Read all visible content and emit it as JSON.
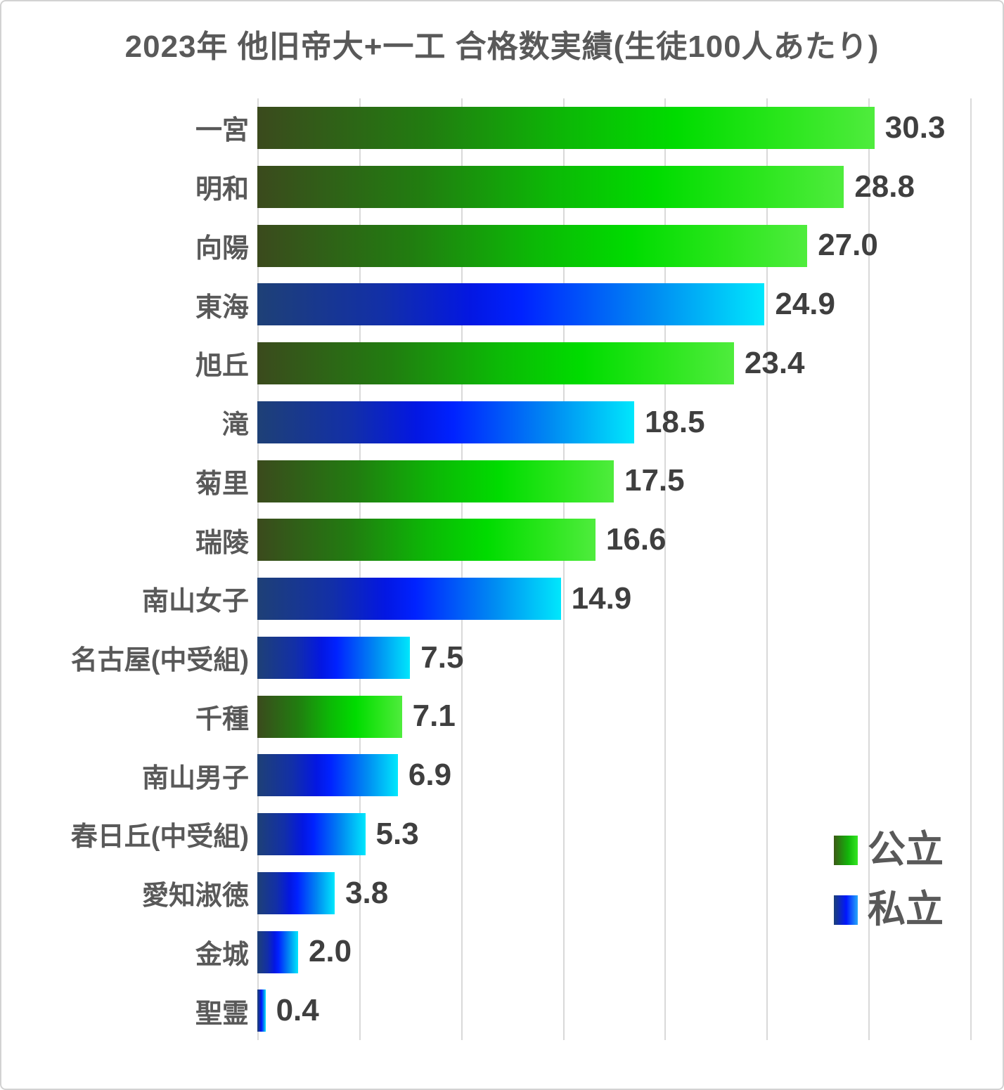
{
  "title": "2023年 他旧帝大+一工 合格数実績(生徒100人あたり)",
  "legend": {
    "items": [
      {
        "label": "公立",
        "series": "public"
      },
      {
        "label": "私立",
        "series": "private"
      }
    ]
  },
  "colors": {
    "title_text": "#595959",
    "category_text": "#595959",
    "value_text": "#3f3f3f",
    "gridline": "#d9d9d9",
    "chart_border": "#d2d2d2",
    "background": "#ffffff",
    "public_accent": "#00dc00",
    "private_accent": "#0016ff",
    "public_gradient_stops": [
      "#3b4a1d 0%",
      "#217d10 28%",
      "#0cb806 50%",
      "#00dc00 68%",
      "#2ae61c 85%",
      "#4fec3d 100%"
    ],
    "private_gradient_stops": [
      "#1e4076 0%",
      "#122fa8 25%",
      "#0317e2 42%",
      "#0022ff 52%",
      "#008bf2 78%",
      "#00e7fc 100%"
    ]
  },
  "chart_data": {
    "type": "bar",
    "orientation": "horizontal",
    "title": "2023年 他旧帝大+一工 合格数実績(生徒100人あたり)",
    "categories": [
      "一宮",
      "明和",
      "向陽",
      "東海",
      "旭丘",
      "滝",
      "菊里",
      "瑞陵",
      "南山女子",
      "名古屋(中受組)",
      "千種",
      "南山男子",
      "春日丘(中受組)",
      "愛知淑徳",
      "金城",
      "聖霊"
    ],
    "values": [
      30.3,
      28.8,
      27.0,
      24.9,
      23.4,
      18.5,
      17.5,
      16.6,
      14.9,
      7.5,
      7.1,
      6.9,
      5.3,
      3.8,
      2.0,
      0.4
    ],
    "series": [
      "public",
      "public",
      "public",
      "private",
      "public",
      "private",
      "public",
      "public",
      "private",
      "private",
      "public",
      "private",
      "private",
      "private",
      "private",
      "private"
    ],
    "legend_entries": [
      "公立",
      "私立"
    ],
    "xlim": [
      0,
      35
    ],
    "grid_interval": 5,
    "grid": true,
    "value_label_style": "outside end, one decimal",
    "legend_position": "inside bottom-right"
  }
}
